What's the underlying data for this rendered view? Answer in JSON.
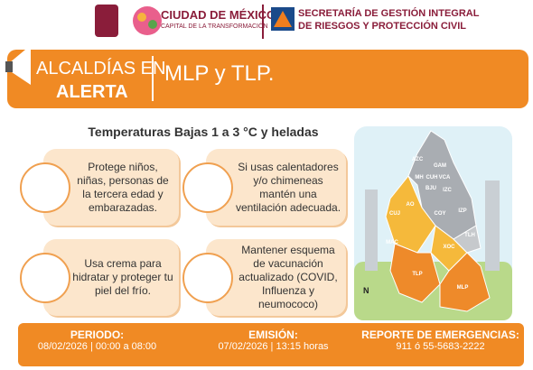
{
  "header": {
    "city": "CIUDAD DE MÉXICO",
    "city_slogan": "CAPITAL DE LA TRANSFORMACIÓN",
    "agency_line1": "SECRETARÍA DE GESTIÓN INTEGRAL",
    "agency_line2": "DE RIESGOS Y PROTECCIÓN CIVIL"
  },
  "banner": {
    "title_line1": "ALCALDÍAS EN",
    "title_line2": "ALERTA",
    "places": "MLP y TLP."
  },
  "subtitle": "Temperaturas Bajas 1 a  3 °C y heladas",
  "tips": [
    "Protege niños, niñas, personas de la tercera edad y embarazadas.",
    "Si usas calentadores y/o chimeneas mantén una ventilación adecuada.",
    "Usa crema para hidratar y proteger tu piel del frío.",
    "Mantener esquema de vacunación actualizado (COVID, Influenza y neumococo)"
  ],
  "map": {
    "labels": [
      "AZC",
      "GAM",
      "MH",
      "CUH",
      "VCA",
      "BJU",
      "IZC",
      "AO",
      "COY",
      "IZP",
      "CUJ",
      "MAC",
      "XOC",
      "TLH",
      "TLP",
      "MLP"
    ],
    "north": "N"
  },
  "footer": {
    "period_label": "PERIODO:",
    "period": "08/02/2026 | 00:00 a 08:00",
    "issued_label": "EMISIÓN:",
    "issued": "07/02/2026 | 13:15 horas",
    "emergency_label": "REPORTE DE EMERGENCIAS:",
    "emergency": "911 ó 55-5683-2222"
  }
}
